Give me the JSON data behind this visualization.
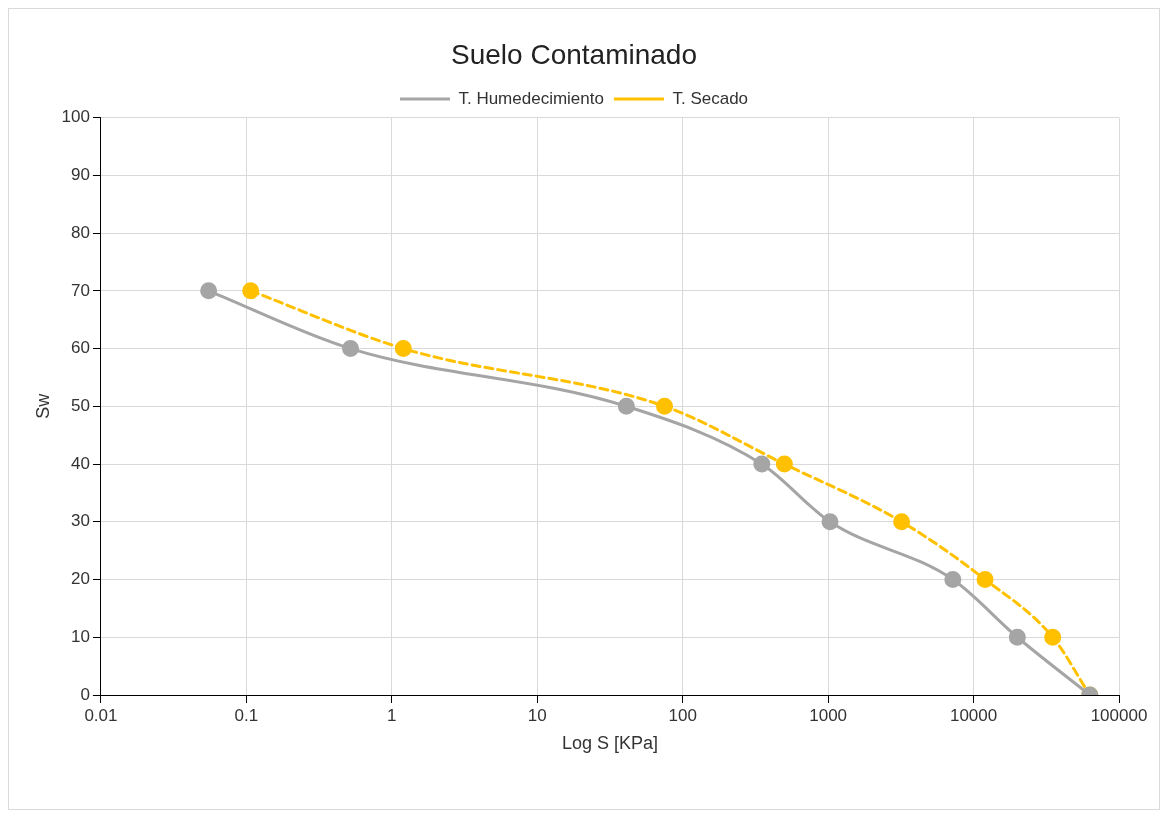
{
  "chart_data": {
    "type": "line",
    "title": "Suelo Contaminado",
    "xlabel": "Log S [KPa]",
    "ylabel": "Sw",
    "log": "x",
    "grid": true,
    "legend": "top",
    "marker": "circle",
    "xlim": [
      0.01,
      100000
    ],
    "xticks": [
      0.01,
      0.1,
      1,
      10,
      100,
      1000,
      10000,
      100000
    ],
    "ylim": [
      0,
      100
    ],
    "yticks": [
      0,
      10,
      20,
      30,
      40,
      50,
      60,
      70,
      80,
      90,
      100
    ],
    "series": [
      {
        "name": "T. Humedecimiento",
        "color": "#a5a5a5",
        "line_style": "solid",
        "x": [
          0.055,
          0.52,
          41,
          350,
          1030,
          7200,
          20000,
          63000
        ],
        "values": [
          70,
          60,
          50,
          40,
          30,
          20,
          10,
          0
        ]
      },
      {
        "name": "T. Secado",
        "color": "#ffc000",
        "line_style": "dashed",
        "x": [
          0.107,
          1.2,
          75,
          500,
          3200,
          12000,
          35000,
          63000
        ],
        "values": [
          70,
          60,
          50,
          40,
          30,
          20,
          10,
          0
        ]
      }
    ]
  }
}
